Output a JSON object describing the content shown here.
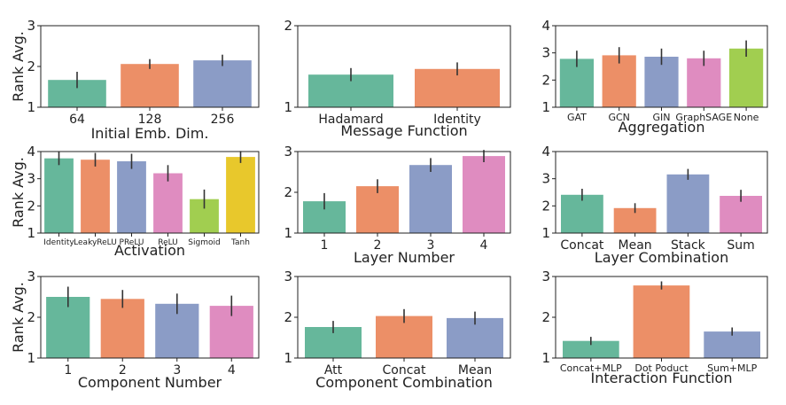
{
  "colors": {
    "teal": "#66b79b",
    "orange": "#ec8f67",
    "blue": "#8b9cc6",
    "pink": "#df8cc0",
    "green": "#a1ce50",
    "yellow": "#e8c82c"
  },
  "chart_data": [
    {
      "type": "bar",
      "title": "",
      "xlabel": "Initial Emb. Dim.",
      "ylabel": "Rank Avg.",
      "ylim": [
        1,
        3
      ],
      "yticks": [
        "1",
        "2",
        "3"
      ],
      "categories": [
        "64",
        "128",
        "256"
      ],
      "values": [
        1.67,
        2.06,
        2.15
      ],
      "errors": [
        0.2,
        0.12,
        0.14
      ],
      "colors": [
        "teal",
        "orange",
        "blue"
      ]
    },
    {
      "type": "bar",
      "title": "",
      "xlabel": "Message Function",
      "ylabel": "",
      "ylim": [
        1,
        2
      ],
      "yticks": [
        "1",
        "2"
      ],
      "categories": [
        "Hadamard",
        "Identity"
      ],
      "values": [
        1.4,
        1.47
      ],
      "errors": [
        0.08,
        0.08
      ],
      "colors": [
        "teal",
        "orange"
      ]
    },
    {
      "type": "bar",
      "title": "",
      "xlabel": "Aggregation",
      "ylabel": "",
      "ylim": [
        1,
        4
      ],
      "yticks": [
        "1",
        "2",
        "3",
        "4"
      ],
      "categories": [
        "GAT",
        "GCN",
        "GIN",
        "GraphSAGE",
        "None"
      ],
      "values": [
        2.78,
        2.91,
        2.86,
        2.8,
        3.16
      ],
      "errors": [
        0.3,
        0.3,
        0.3,
        0.28,
        0.3
      ],
      "colors": [
        "teal",
        "orange",
        "blue",
        "pink",
        "green"
      ]
    },
    {
      "type": "bar",
      "title": "",
      "xlabel": "Activation",
      "ylabel": "Rank Avg.",
      "ylim": [
        1,
        4
      ],
      "yticks": [
        "1",
        "2",
        "3",
        "4"
      ],
      "categories": [
        "Identity",
        "LeakyReLU",
        "PReLU",
        "ReLU",
        "Sigmoid",
        "Tanh"
      ],
      "values": [
        3.75,
        3.7,
        3.64,
        3.2,
        2.25,
        3.8
      ],
      "errors": [
        0.25,
        0.25,
        0.28,
        0.3,
        0.35,
        0.22
      ],
      "colors": [
        "teal",
        "orange",
        "blue",
        "pink",
        "green",
        "yellow"
      ]
    },
    {
      "type": "bar",
      "title": "",
      "xlabel": "Layer Number",
      "ylabel": "",
      "ylim": [
        1,
        3
      ],
      "yticks": [
        "1",
        "2",
        "3"
      ],
      "categories": [
        "1",
        "2",
        "3",
        "4"
      ],
      "values": [
        1.78,
        2.15,
        2.67,
        2.89
      ],
      "errors": [
        0.2,
        0.17,
        0.17,
        0.15
      ],
      "colors": [
        "teal",
        "orange",
        "blue",
        "pink"
      ]
    },
    {
      "type": "bar",
      "title": "",
      "xlabel": "Layer Combination",
      "ylabel": "",
      "ylim": [
        1,
        4
      ],
      "yticks": [
        "1",
        "2",
        "3",
        "4"
      ],
      "categories": [
        "Concat",
        "Mean",
        "Stack",
        "Sum"
      ],
      "values": [
        2.41,
        1.92,
        3.16,
        2.37
      ],
      "errors": [
        0.22,
        0.18,
        0.2,
        0.22
      ],
      "colors": [
        "teal",
        "orange",
        "blue",
        "pink"
      ]
    },
    {
      "type": "bar",
      "title": "",
      "xlabel": "Component Number",
      "ylabel": "Rank Avg.",
      "ylim": [
        1,
        3
      ],
      "yticks": [
        "1",
        "2",
        "3"
      ],
      "categories": [
        "1",
        "2",
        "3",
        "4"
      ],
      "values": [
        2.5,
        2.45,
        2.33,
        2.28
      ],
      "errors": [
        0.25,
        0.22,
        0.25,
        0.25
      ],
      "colors": [
        "teal",
        "orange",
        "blue",
        "pink"
      ]
    },
    {
      "type": "bar",
      "title": "",
      "xlabel": "Component Combination",
      "ylabel": "",
      "ylim": [
        1,
        3
      ],
      "yticks": [
        "1",
        "2",
        "3"
      ],
      "categories": [
        "Att",
        "Concat",
        "Mean"
      ],
      "values": [
        1.76,
        2.03,
        1.98
      ],
      "errors": [
        0.15,
        0.17,
        0.16
      ],
      "colors": [
        "teal",
        "orange",
        "blue"
      ]
    },
    {
      "type": "bar",
      "title": "",
      "xlabel": "Interaction Function",
      "ylabel": "",
      "ylim": [
        1,
        3
      ],
      "yticks": [
        "1",
        "2",
        "3"
      ],
      "categories": [
        "Concat+MLP",
        "Dot Poduct",
        "Sum+MLP"
      ],
      "values": [
        1.42,
        2.78,
        1.65
      ],
      "errors": [
        0.1,
        0.1,
        0.1
      ],
      "colors": [
        "teal",
        "orange",
        "blue"
      ]
    }
  ]
}
